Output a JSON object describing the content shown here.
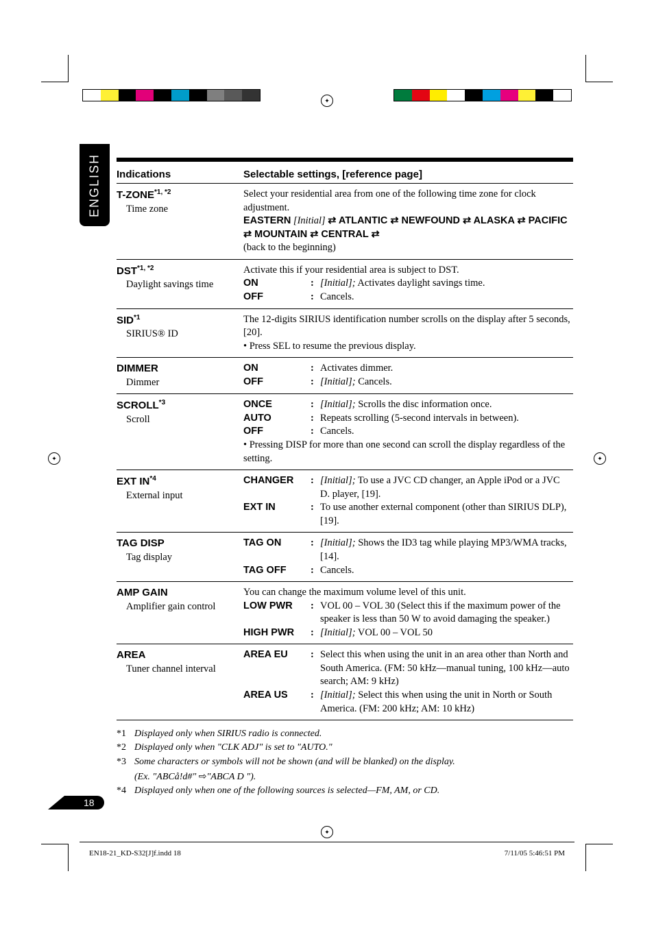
{
  "lang_tab": "ENGLISH",
  "header": {
    "col1": "Indications",
    "col2": "Selectable settings, [reference page]"
  },
  "rows": {
    "tzone": {
      "key": "T-ZONE",
      "sup": "*1, *2",
      "sub": "Time zone",
      "intro": "Select your residential area from one of the following time zone for clock adjustment.",
      "cycle_prefix": "EASTERN",
      "cycle_initial": " [Initial] ",
      "cycle_rest": "ATLANTIC ⇄ NEWFOUND ⇄ ALASKA ⇄ PACIFIC ⇄ MOUNTAIN ⇄ CENTRAL ⇄",
      "back": "(back to the beginning)"
    },
    "dst": {
      "key": "DST",
      "sup": "*1, *2",
      "sub": "Daylight savings time",
      "intro": "Activate this if your residential area is subject to DST.",
      "on_desc_pre": "[Initial];",
      "on_desc": " Activates daylight savings time.",
      "off_desc": "Cancels."
    },
    "sid": {
      "key": "SID",
      "sup": "*1",
      "sub": "SIRIUS® ID",
      "line1": "The 12-digits SIRIUS identification number scrolls on the display after 5 seconds, [20].",
      "bullet": "Press SEL to resume the previous display."
    },
    "dimmer": {
      "key": "DIMMER",
      "sub": "Dimmer",
      "on_desc": "Activates dimmer.",
      "off_desc_pre": "[Initial];",
      "off_desc": " Cancels."
    },
    "scroll": {
      "key": "SCROLL",
      "sup": "*3",
      "sub": "Scroll",
      "once_pre": "[Initial];",
      "once": " Scrolls the disc information once.",
      "auto": "Repeats scrolling (5-second intervals in between).",
      "off": "Cancels.",
      "bullet": "Pressing DISP for more than one second can scroll the display regardless of the setting."
    },
    "extin": {
      "key": "EXT IN",
      "sup": "*4",
      "sub": "External input",
      "changer_pre": "[Initial];",
      "changer": " To use a JVC CD changer, an Apple iPod or a JVC D. player, [19].",
      "extin": "To use another external component (other than SIRIUS DLP), [19]."
    },
    "tag": {
      "key": "TAG DISP",
      "sub": "Tag display",
      "on_pre": "[Initial];",
      "on": " Shows the ID3 tag while playing MP3/WMA tracks, [14].",
      "off": "Cancels."
    },
    "amp": {
      "key": "AMP GAIN",
      "sub": "Amplifier gain control",
      "intro": "You can change the maximum volume level of this unit.",
      "low": "VOL 00 – VOL 30 (Select this if the maximum power of the speaker is less than 50 W to avoid damaging the speaker.)",
      "high_pre": "[Initial];",
      "high": " VOL 00 – VOL 50"
    },
    "area": {
      "key": "AREA",
      "sub": "Tuner channel interval",
      "eu": "Select this when using the unit in an area other than North and South America. (FM: 50 kHz—manual tuning, 100 kHz—auto search; AM: 9 kHz)",
      "us_pre": "[Initial];",
      "us": " Select this when using the unit in North or South America. (FM: 200 kHz; AM: 10 kHz)"
    }
  },
  "opts": {
    "on": "ON",
    "off": "OFF",
    "once": "ONCE",
    "auto": "AUTO",
    "changer": "CHANGER",
    "extin": "EXT IN",
    "tagon": "TAG ON",
    "tagoff": "TAG OFF",
    "lowpwr": "LOW PWR",
    "highpwr": "HIGH PWR",
    "areaeu": "AREA EU",
    "areaus": "AREA US"
  },
  "footnotes": {
    "f1": "Displayed only when SIRIUS radio is connected.",
    "f2": "Displayed only when \"CLK ADJ\" is set to \"AUTO.\"",
    "f3a": "Some characters or symbols will not be shown (and will be blanked) on the display.",
    "f3b_pre": "(Ex. \"ABCå!d#\" ",
    "f3b_post": "\"ABCA  D  \").",
    "f4": "Displayed only when one of the following sources is selected—FM, AM, or CD."
  },
  "marks": {
    "f1": "*1",
    "f2": "*2",
    "f3": "*3",
    "f4": "*4"
  },
  "page_number": "18",
  "footer": {
    "left": "EN18-21_KD-S32[J]f.indd   18",
    "right": "7/11/05   5:46:51 PM"
  },
  "colorbars": {
    "left": [
      "#ffffff",
      "#fef035",
      "#000000",
      "#e20079",
      "#000000",
      "#009cca",
      "#000000",
      "#7f7f7f",
      "#595959",
      "#333333"
    ],
    "right": [
      "#007b3d",
      "#e30613",
      "#ffed00",
      "#ffffff",
      "#000000",
      "#00a0e0",
      "#e6007e",
      "#fef035",
      "#000000",
      "#ffffff"
    ]
  }
}
